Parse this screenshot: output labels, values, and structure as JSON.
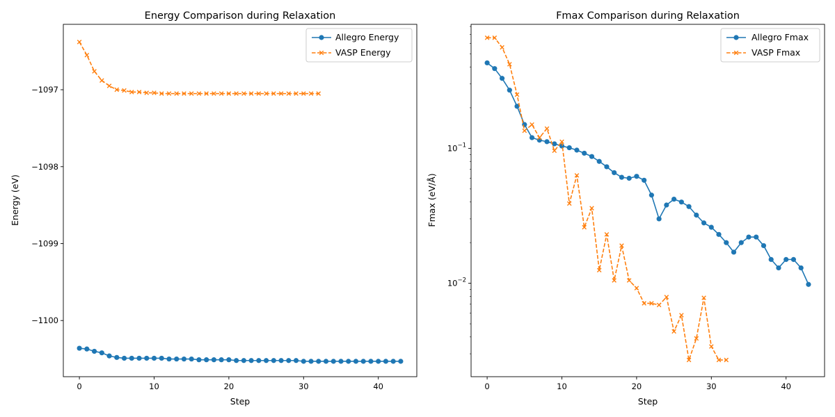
{
  "colors": {
    "allegro": "#1f77b4",
    "vasp": "#ff7f0e"
  },
  "chart_data": [
    {
      "type": "line",
      "title": "Energy Comparison during Relaxation",
      "xlabel": "Step",
      "ylabel": "Energy (eV)",
      "xlim": [
        -2.15,
        45.15
      ],
      "ylim": [
        -1100.73,
        -1096.15
      ],
      "yscale": "linear",
      "xticks": [
        0,
        10,
        20,
        30,
        40
      ],
      "yticks": [
        -1097,
        -1098,
        -1099,
        -1100
      ],
      "ytick_labels": [
        "−1097",
        "−1098",
        "−1099",
        "−1100"
      ],
      "legend_position": "upper right",
      "series": [
        {
          "name": "Allegro Energy",
          "color": "#1f77b4",
          "linestyle": "solid",
          "marker": "circle",
          "x": [
            0,
            1,
            2,
            3,
            4,
            5,
            6,
            7,
            8,
            9,
            10,
            11,
            12,
            13,
            14,
            15,
            16,
            17,
            18,
            19,
            20,
            21,
            22,
            23,
            24,
            25,
            26,
            27,
            28,
            29,
            30,
            31,
            32,
            33,
            34,
            35,
            36,
            37,
            38,
            39,
            40,
            41,
            42,
            43
          ],
          "y": [
            -1100.36,
            -1100.37,
            -1100.4,
            -1100.42,
            -1100.46,
            -1100.48,
            -1100.49,
            -1100.49,
            -1100.49,
            -1100.49,
            -1100.49,
            -1100.49,
            -1100.5,
            -1100.5,
            -1100.5,
            -1100.5,
            -1100.51,
            -1100.51,
            -1100.51,
            -1100.51,
            -1100.51,
            -1100.52,
            -1100.52,
            -1100.52,
            -1100.52,
            -1100.52,
            -1100.52,
            -1100.52,
            -1100.52,
            -1100.52,
            -1100.53,
            -1100.53,
            -1100.53,
            -1100.53,
            -1100.53,
            -1100.53,
            -1100.53,
            -1100.53,
            -1100.53,
            -1100.53,
            -1100.53,
            -1100.53,
            -1100.53,
            -1100.53
          ]
        },
        {
          "name": "VASP Energy",
          "color": "#ff7f0e",
          "linestyle": "dashed",
          "marker": "x",
          "x": [
            0,
            1,
            2,
            3,
            4,
            5,
            6,
            7,
            8,
            9,
            10,
            11,
            12,
            13,
            14,
            15,
            16,
            17,
            18,
            19,
            20,
            21,
            22,
            23,
            24,
            25,
            26,
            27,
            28,
            29,
            30,
            31,
            32
          ],
          "y": [
            -1096.38,
            -1096.55,
            -1096.76,
            -1096.88,
            -1096.95,
            -1097.0,
            -1097.01,
            -1097.03,
            -1097.03,
            -1097.04,
            -1097.04,
            -1097.05,
            -1097.05,
            -1097.05,
            -1097.05,
            -1097.05,
            -1097.05,
            -1097.05,
            -1097.05,
            -1097.05,
            -1097.05,
            -1097.05,
            -1097.05,
            -1097.05,
            -1097.05,
            -1097.05,
            -1097.05,
            -1097.05,
            -1097.05,
            -1097.05,
            -1097.05,
            -1097.05,
            -1097.05
          ]
        }
      ]
    },
    {
      "type": "line",
      "title": "Fmax Comparison during Relaxation",
      "xlabel": "Step",
      "ylabel": "Fmax (eV/Å)",
      "xlim": [
        -2.15,
        45.15
      ],
      "ylim": [
        0.00203,
        0.83
      ],
      "yscale": "log",
      "xticks": [
        0,
        10,
        20,
        30,
        40
      ],
      "yticks": [
        0.1,
        0.01
      ],
      "ytick_labels": [
        "10⁻¹",
        "10⁻²"
      ],
      "legend_position": "upper right",
      "series": [
        {
          "name": "Allegro Fmax",
          "color": "#1f77b4",
          "linestyle": "solid",
          "marker": "circle",
          "x": [
            0,
            1,
            2,
            3,
            4,
            5,
            6,
            7,
            8,
            9,
            10,
            11,
            12,
            13,
            14,
            15,
            16,
            17,
            18,
            19,
            20,
            21,
            22,
            23,
            24,
            25,
            26,
            27,
            28,
            29,
            30,
            31,
            32,
            33,
            34,
            35,
            36,
            37,
            38,
            39,
            40,
            41,
            42,
            43
          ],
          "y": [
            0.43,
            0.39,
            0.33,
            0.27,
            0.205,
            0.15,
            0.12,
            0.115,
            0.112,
            0.108,
            0.104,
            0.101,
            0.097,
            0.092,
            0.087,
            0.08,
            0.073,
            0.066,
            0.061,
            0.06,
            0.062,
            0.058,
            0.045,
            0.03,
            0.038,
            0.042,
            0.04,
            0.037,
            0.032,
            0.028,
            0.026,
            0.023,
            0.02,
            0.017,
            0.02,
            0.022,
            0.022,
            0.019,
            0.015,
            0.013,
            0.015,
            0.015,
            0.013,
            0.0098
          ]
        },
        {
          "name": "VASP Fmax",
          "color": "#ff7f0e",
          "linestyle": "dashed",
          "marker": "x",
          "x": [
            0,
            1,
            2,
            3,
            4,
            5,
            6,
            7,
            8,
            9,
            10,
            11,
            12,
            13,
            14,
            15,
            16,
            17,
            18,
            19,
            20,
            21,
            22,
            23,
            24,
            25,
            26,
            27,
            28,
            29,
            30,
            31,
            32
          ],
          "y": [
            0.66,
            0.66,
            0.56,
            0.42,
            0.25,
            0.135,
            0.15,
            0.12,
            0.14,
            0.096,
            0.112,
            0.039,
            0.063,
            0.026,
            0.036,
            0.0125,
            0.023,
            0.0105,
            0.019,
            0.0105,
            0.0092,
            0.0071,
            0.0071,
            0.0069,
            0.0079,
            0.0044,
            0.0058,
            0.0027,
            0.0039,
            0.0078,
            0.0034,
            0.0027,
            0.0027
          ]
        }
      ]
    }
  ]
}
